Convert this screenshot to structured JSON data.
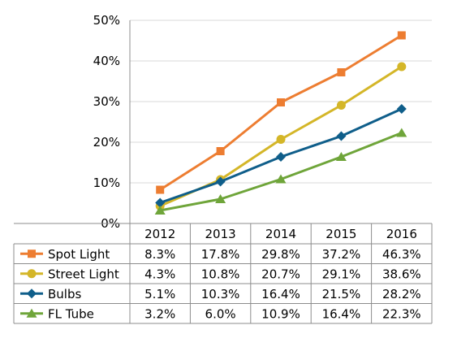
{
  "chart_data": {
    "type": "line",
    "categories": [
      "2012",
      "2013",
      "2014",
      "2015",
      "2016"
    ],
    "ylim": [
      0,
      50
    ],
    "yticks": [
      0,
      10,
      20,
      30,
      40,
      50
    ],
    "ytick_labels": [
      "0%",
      "10%",
      "20%",
      "30%",
      "40%",
      "50%"
    ],
    "grid": "horizontal",
    "legend": "data-table-rows",
    "series": [
      {
        "name": "Spot Light",
        "values": [
          8.3,
          17.8,
          29.8,
          37.2,
          46.3
        ],
        "labels": [
          "8.3%",
          "17.8%",
          "29.8%",
          "37.2%",
          "46.3%"
        ],
        "color": "#ED7D31",
        "marker": "square"
      },
      {
        "name": "Street Light",
        "values": [
          4.3,
          10.8,
          20.7,
          29.1,
          38.6
        ],
        "labels": [
          "4.3%",
          "10.8%",
          "20.7%",
          "29.1%",
          "38.6%"
        ],
        "color": "#D4B628",
        "marker": "circle"
      },
      {
        "name": "Bulbs",
        "values": [
          5.1,
          10.3,
          16.4,
          21.5,
          28.2
        ],
        "labels": [
          "5.1%",
          "10.3%",
          "16.4%",
          "21.5%",
          "28.2%"
        ],
        "color": "#0F5E8A",
        "marker": "diamond"
      },
      {
        "name": "FL Tube",
        "values": [
          3.2,
          6.0,
          10.9,
          16.4,
          22.3
        ],
        "labels": [
          "3.2%",
          "6.0%",
          "10.9%",
          "16.4%",
          "22.3%"
        ],
        "color": "#6FA53A",
        "marker": "triangle"
      }
    ],
    "colors": {
      "grid": "#D9D9D9",
      "table_border": "#8C8C8C"
    }
  }
}
